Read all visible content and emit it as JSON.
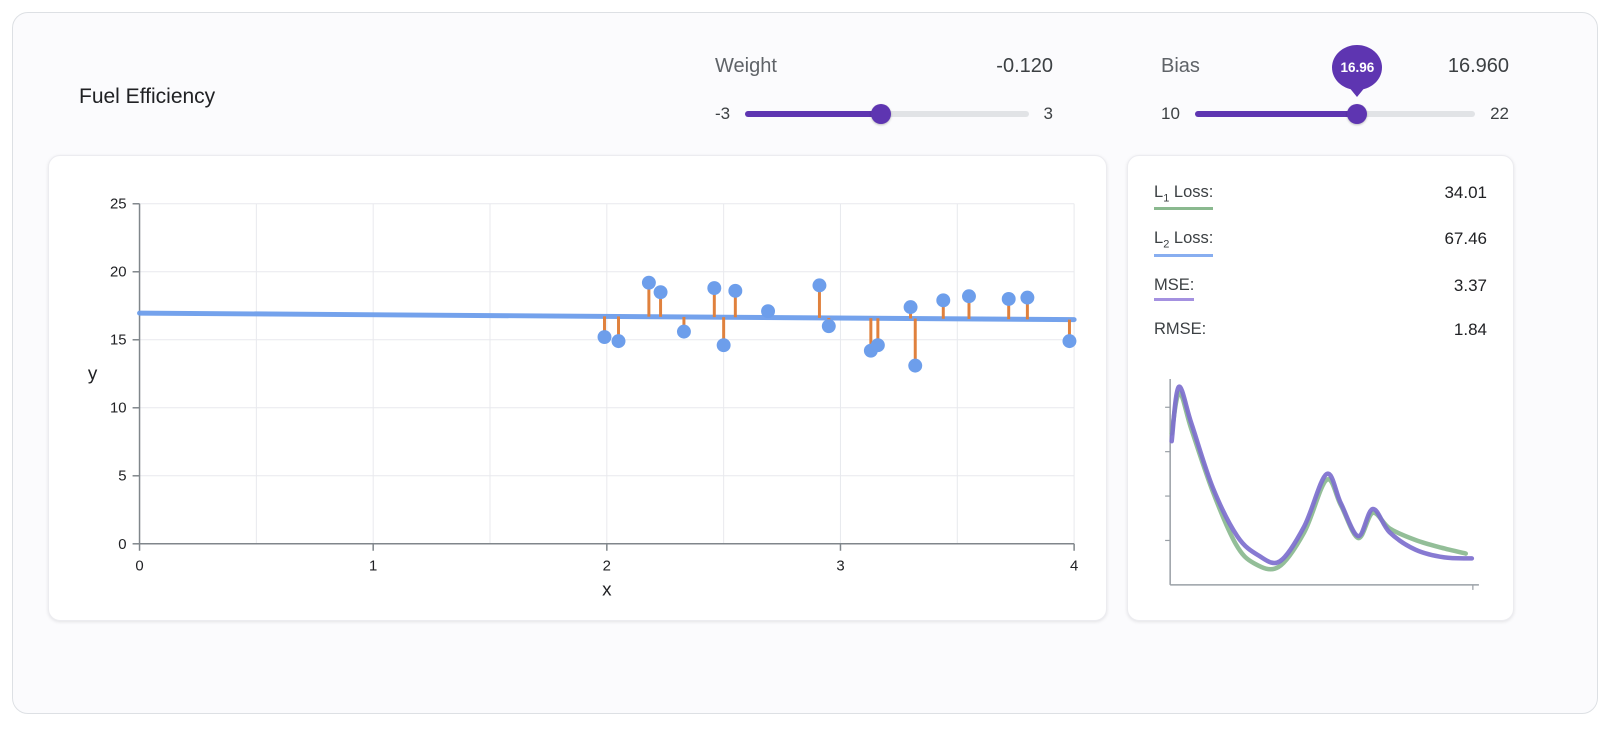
{
  "title": "Fuel Efficiency",
  "colors": {
    "accent": "#5e35b1",
    "track": "#e1e3e6",
    "point": "#6d9eeb",
    "model_line": "#6d9eeb",
    "residual": "#e0813d",
    "l1_green": "#8ab98f",
    "l2_blue": "#88aef0",
    "mse_purple": "#a491e0"
  },
  "controls": {
    "weight": {
      "label": "Weight",
      "value": "-0.120",
      "value_num": -0.12,
      "min_num": -3,
      "max_num": 3,
      "min_label": "-3",
      "max_label": "3"
    },
    "bias": {
      "label": "Bias",
      "value": "16.960",
      "value_num": 16.96,
      "min_num": 10,
      "max_num": 22,
      "min_label": "10",
      "max_label": "22",
      "tooltip": "16.96"
    }
  },
  "metrics": [
    {
      "base": "L",
      "sub": "1",
      "rest": " Loss:",
      "value": "34.01",
      "underline": "#8ab98f"
    },
    {
      "base": "L",
      "sub": "2",
      "rest": " Loss:",
      "value": "67.46",
      "underline": "#88aef0"
    },
    {
      "base": "MSE:",
      "sub": "",
      "rest": "",
      "value": "3.37",
      "underline": "#a491e0"
    },
    {
      "base": "RMSE:",
      "sub": "",
      "rest": "",
      "value": "1.84",
      "underline": ""
    }
  ],
  "chart_data": [
    {
      "type": "scatter",
      "title": "",
      "xlabel": "x",
      "ylabel": "y",
      "xlim": [
        0,
        4
      ],
      "ylim": [
        0,
        25
      ],
      "x_ticks": [
        0,
        1,
        2,
        3,
        4
      ],
      "y_ticks": [
        0,
        5,
        10,
        15,
        20,
        25
      ],
      "x_minor_step": 0.5,
      "grid": true,
      "point_color": "#6d9eeb",
      "line_color": "#6d9eeb",
      "residual_color": "#e0813d",
      "model_line": {
        "weight": -0.12,
        "bias": 16.96
      },
      "points": [
        [
          1.99,
          15.2
        ],
        [
          2.05,
          14.9
        ],
        [
          2.18,
          19.2
        ],
        [
          2.23,
          18.5
        ],
        [
          2.33,
          15.6
        ],
        [
          2.46,
          18.8
        ],
        [
          2.5,
          14.6
        ],
        [
          2.55,
          18.6
        ],
        [
          2.69,
          17.1
        ],
        [
          2.91,
          19.0
        ],
        [
          2.95,
          16.0
        ],
        [
          3.13,
          14.2
        ],
        [
          3.16,
          14.6
        ],
        [
          3.3,
          17.4
        ],
        [
          3.32,
          13.1
        ],
        [
          3.44,
          17.9
        ],
        [
          3.55,
          18.2
        ],
        [
          3.72,
          18.0
        ],
        [
          3.8,
          18.1
        ],
        [
          3.98,
          14.9
        ]
      ]
    },
    {
      "type": "line",
      "title": "",
      "xlabel": "",
      "ylabel": "",
      "axes_only": true,
      "series": [
        {
          "name": "L1 loss curve",
          "color": "#8ab98f",
          "points": [
            [
              0.005,
              0.26
            ],
            [
              0.03,
              0.05
            ],
            [
              0.07,
              0.24
            ],
            [
              0.14,
              0.56
            ],
            [
              0.215,
              0.83
            ],
            [
              0.275,
              0.93
            ],
            [
              0.355,
              0.95
            ],
            [
              0.44,
              0.77
            ],
            [
              0.513,
              0.5
            ],
            [
              0.56,
              0.63
            ],
            [
              0.617,
              0.8
            ],
            [
              0.665,
              0.67
            ],
            [
              0.72,
              0.75
            ],
            [
              0.805,
              0.81
            ],
            [
              0.89,
              0.85
            ],
            [
              0.97,
              0.88
            ]
          ]
        },
        {
          "name": "MSE curve",
          "color": "#7d6fce",
          "points": [
            [
              0.005,
              0.3
            ],
            [
              0.028,
              0.02
            ],
            [
              0.07,
              0.21
            ],
            [
              0.14,
              0.54
            ],
            [
              0.22,
              0.79
            ],
            [
              0.29,
              0.89
            ],
            [
              0.36,
              0.92
            ],
            [
              0.44,
              0.74
            ],
            [
              0.513,
              0.47
            ],
            [
              0.56,
              0.62
            ],
            [
              0.617,
              0.79
            ],
            [
              0.665,
              0.65
            ],
            [
              0.72,
              0.77
            ],
            [
              0.805,
              0.86
            ],
            [
              0.9,
              0.9
            ],
            [
              0.99,
              0.905
            ]
          ]
        }
      ]
    }
  ]
}
